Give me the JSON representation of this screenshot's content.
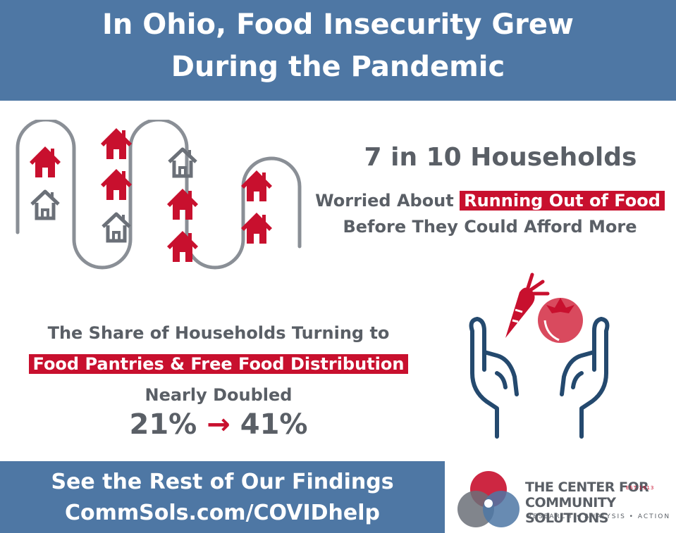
{
  "header": {
    "line1": "In Ohio, Food Insecurity Grew",
    "line2": "During the Pandemic"
  },
  "stat1": {
    "headline": "7 in 10 Households",
    "worried_prefix": "Worried About ",
    "worried_highlight": "Running Out of Food",
    "worried_line2": "Before They Could Afford More"
  },
  "stat2": {
    "line1": "The Share of Households Turning to",
    "highlight": "Food Pantries & Free Food Distribution",
    "line3": "Nearly Doubled",
    "from": "21%",
    "arrow": "→",
    "to": "41%"
  },
  "footer": {
    "line1": "See the Rest of Our Findings",
    "line2": "CommSols.com/COVIDhelp"
  },
  "logo": {
    "name_line1": "THE CENTER FOR",
    "name_line2": "COMMUNITY SOLUTIONS",
    "established": "EST.1913",
    "tagline": "RESEARCH • ANALYSIS • ACTION"
  },
  "colors": {
    "blue": "#4e77a4",
    "red": "#c8102e",
    "gray": "#5a5f66"
  },
  "icons": {
    "houses": "houses-grid-icon",
    "hands": "hands-with-vegetables-icon",
    "logo": "overlapping-circles-logo-icon"
  }
}
